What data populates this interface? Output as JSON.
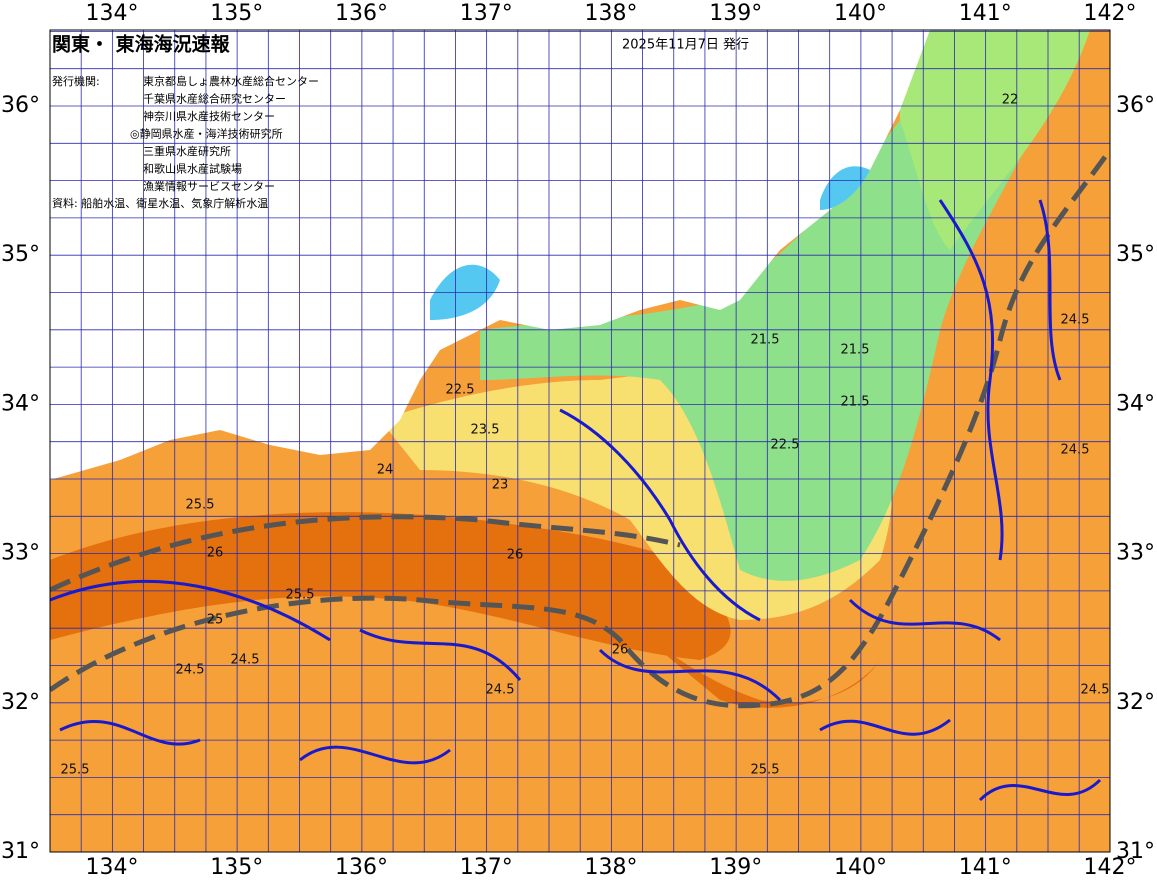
{
  "header": {
    "title": "関東・ 東海海況速報",
    "issue_date": "2025年11月7日 発行",
    "agencies_label": "発行機関:",
    "agencies": [
      "東京都島しょ農林水産総合センター",
      "千葉県水産総合研究センター",
      "神奈川県水産技術センター",
      "◎静岡県水産・海洋技術研究所",
      "三重県水産研究所",
      "和歌山県水産試験場",
      "漁業情報サービスセンター"
    ],
    "source": "資料: 船舶水温、衛星水温、気象庁解析水温"
  },
  "map": {
    "xticks": [
      {
        "value": 134,
        "label": "134°"
      },
      {
        "value": 135,
        "label": "135°"
      },
      {
        "value": 136,
        "label": "136°"
      },
      {
        "value": 137,
        "label": "137°"
      },
      {
        "value": 138,
        "label": "138°"
      },
      {
        "value": 139,
        "label": "139°"
      },
      {
        "value": 140,
        "label": "140°"
      },
      {
        "value": 141,
        "label": "141°"
      },
      {
        "value": 142,
        "label": "142°"
      }
    ],
    "yticks": [
      {
        "value": 31,
        "label": "31°"
      },
      {
        "value": 32,
        "label": "32°"
      },
      {
        "value": 33,
        "label": "33°"
      },
      {
        "value": 34,
        "label": "34°"
      },
      {
        "value": 35,
        "label": "35°"
      },
      {
        "value": 36,
        "label": "36°"
      }
    ],
    "contour_labels": [
      "21.5",
      "21.5",
      "21.5",
      "22",
      "22.5",
      "22.5",
      "23",
      "23.5",
      "24",
      "24.5",
      "24.5",
      "24.5",
      "24.5",
      "25",
      "25.5",
      "25.5",
      "25.5",
      "25.5",
      "26",
      "26",
      "26",
      "24.5",
      "24.5"
    ]
  }
}
